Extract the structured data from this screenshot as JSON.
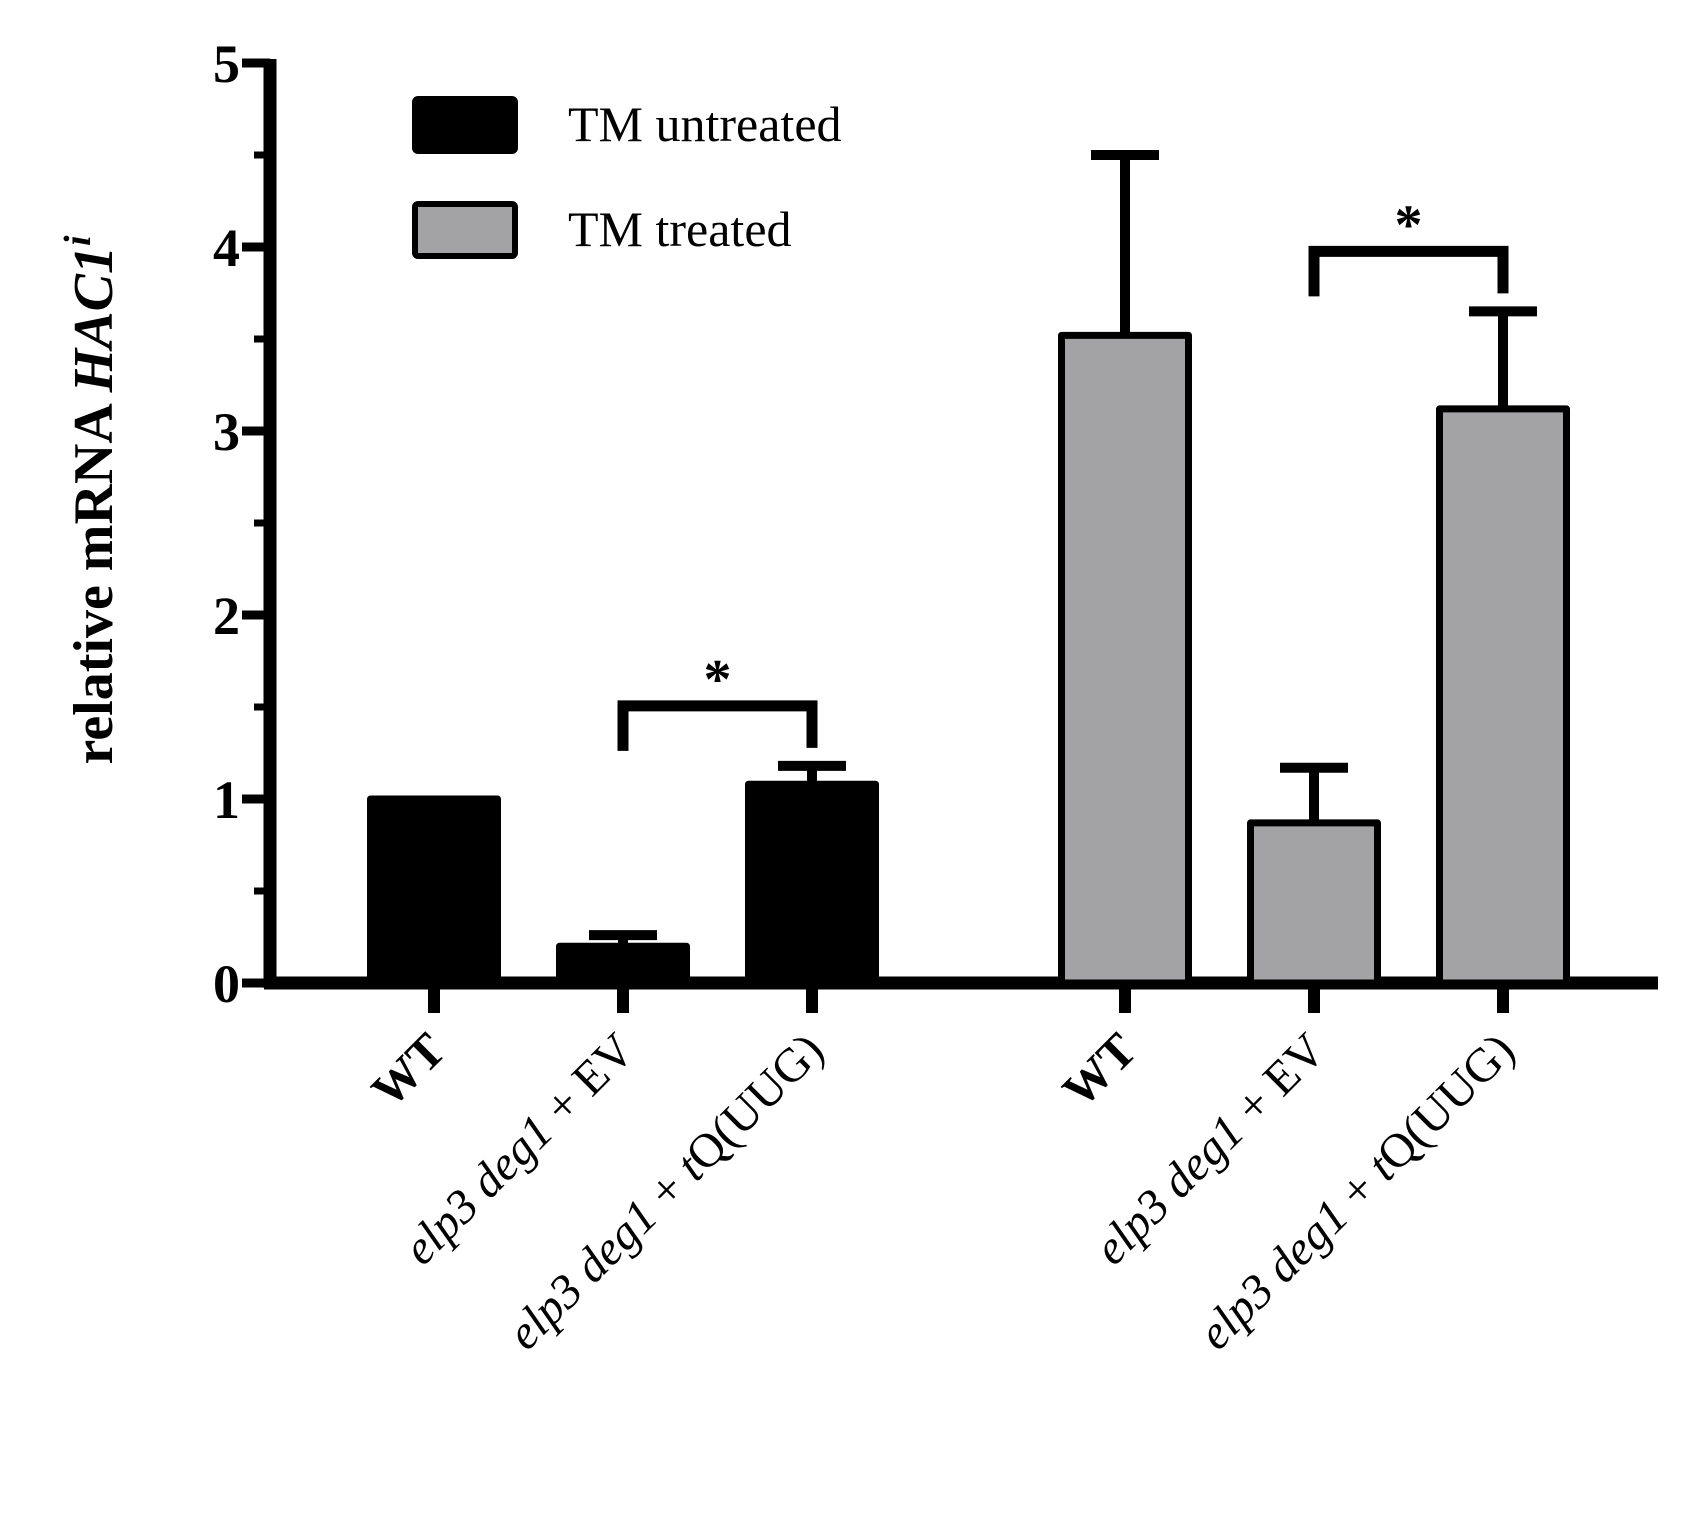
{
  "chart_data": {
    "type": "bar",
    "ylabel": {
      "text": "relative mRNA ",
      "gene": "HAC1",
      "superscript": "i"
    },
    "xlabel": "",
    "ylim": [
      0,
      5
    ],
    "yticks": [
      "0",
      "1",
      "2",
      "3",
      "4",
      "5"
    ],
    "minor_ticks_per_unit": 2,
    "legend": {
      "placement": "top-left",
      "entries": [
        {
          "label": "TM untreated",
          "color": "#000000"
        },
        {
          "label": "TM treated",
          "color": "#a3a3a6"
        }
      ]
    },
    "series": [
      {
        "name": "TM untreated",
        "color": "#000000",
        "categories": [
          {
            "parts": [
              {
                "text": "WT",
                "style": "bold"
              }
            ]
          },
          {
            "parts": [
              {
                "text": "elp3 deg1",
                "style": "italic"
              },
              {
                "text": " + EV",
                "style": "normal"
              }
            ]
          },
          {
            "parts": [
              {
                "text": "elp3 deg1",
                "style": "italic"
              },
              {
                "text": " + ",
                "style": "normal"
              },
              {
                "text": "t",
                "style": "italic"
              },
              {
                "text": "Q(UUG)",
                "style": "normal"
              }
            ]
          }
        ],
        "values": [
          1.0,
          0.2,
          1.08
        ],
        "errors": [
          0.0,
          0.06,
          0.1
        ]
      },
      {
        "name": "TM treated",
        "color": "#a3a3a6",
        "categories": [
          {
            "parts": [
              {
                "text": "WT",
                "style": "bold"
              }
            ]
          },
          {
            "parts": [
              {
                "text": "elp3 deg1",
                "style": "italic"
              },
              {
                "text": " + EV",
                "style": "normal"
              }
            ]
          },
          {
            "parts": [
              {
                "text": "elp3 deg1",
                "style": "italic"
              },
              {
                "text": " + ",
                "style": "normal"
              },
              {
                "text": "t",
                "style": "italic"
              },
              {
                "text": "Q(UUG)",
                "style": "normal"
              }
            ]
          }
        ],
        "values": [
          3.52,
          0.87,
          3.12
        ],
        "errors": [
          0.98,
          0.3,
          0.53
        ]
      }
    ],
    "significance": [
      {
        "series": 0,
        "from": 1,
        "to": 2,
        "label": "*"
      },
      {
        "series": 1,
        "from": 1,
        "to": 2,
        "label": "*"
      }
    ]
  }
}
